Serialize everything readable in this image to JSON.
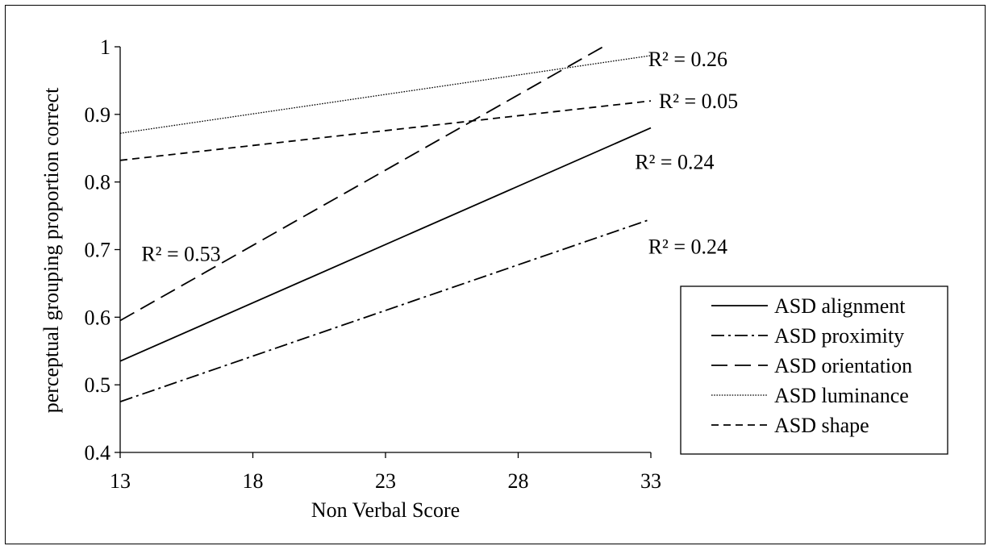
{
  "chart_data": {
    "type": "line",
    "xlabel": "Non Verbal Score",
    "ylabel": "perceptual grouping proportion correct",
    "xlim": [
      13,
      33
    ],
    "ylim": [
      0.4,
      1
    ],
    "x_ticks": [
      "13",
      "18",
      "23",
      "28",
      "33"
    ],
    "y_ticks": [
      "0.4",
      "0.5",
      "0.6",
      "0.7",
      "0.8",
      "0.9",
      "1"
    ],
    "legend_position": "lower-right",
    "series": [
      {
        "name": "ASD alignment",
        "style": "solid",
        "x": [
          13,
          33
        ],
        "y": [
          0.535,
          0.88
        ]
      },
      {
        "name": "ASD proximity",
        "style": "dashdot",
        "x": [
          13,
          33
        ],
        "y": [
          0.475,
          0.745
        ]
      },
      {
        "name": "ASD orientation",
        "style": "longdash",
        "x": [
          13,
          31.2
        ],
        "y": [
          0.595,
          1.0
        ]
      },
      {
        "name": "ASD luminance",
        "style": "dotted",
        "x": [
          13,
          33
        ],
        "y": [
          0.872,
          0.987
        ]
      },
      {
        "name": "ASD shape",
        "style": "shortdash",
        "x": [
          13,
          33
        ],
        "y": [
          0.832,
          0.92
        ]
      }
    ],
    "annotations": [
      {
        "text": "R² = 0.26",
        "x": 32.9,
        "y": 0.982
      },
      {
        "text": "R² = 0.05",
        "x": 33.3,
        "y": 0.92
      },
      {
        "text": "R² = 0.24",
        "x": 32.4,
        "y": 0.83
      },
      {
        "text": "R² = 0.24",
        "x": 32.9,
        "y": 0.705
      },
      {
        "text": "R² = 0.53",
        "x": 13.8,
        "y": 0.694
      }
    ]
  }
}
